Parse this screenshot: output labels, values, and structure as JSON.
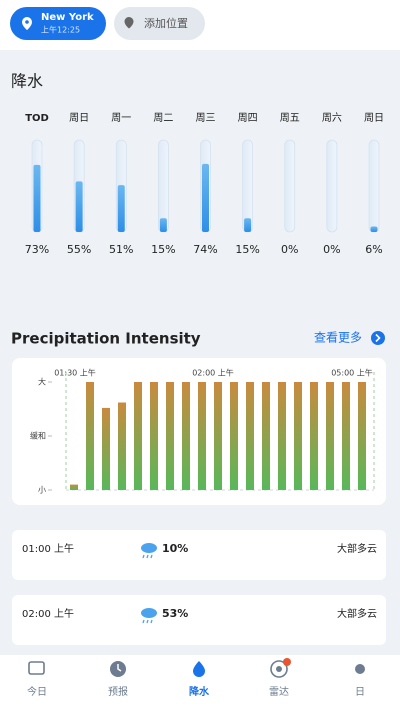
{
  "header": {
    "location": "New York",
    "time": "上午12:25",
    "add_location": "添加位置"
  },
  "precipitation": {
    "title": "降水",
    "categories": [
      "TOD",
      "周日",
      "周一",
      "周二",
      "周三",
      "周四",
      "周五",
      "周六",
      "周日"
    ],
    "values": [
      73,
      55,
      51,
      15,
      74,
      15,
      0,
      0,
      6
    ],
    "value_labels": [
      "73%",
      "55%",
      "51%",
      "15%",
      "74%",
      "15%",
      "0%",
      "0%",
      "6%"
    ]
  },
  "intensity": {
    "title": "Precipitation Intensity",
    "more": "查看更多",
    "time_labels": [
      "01:30 上午",
      "02:00 上午",
      "05:00 上午"
    ],
    "ylim": [
      0,
      1
    ],
    "yticks": [
      {
        "value": 0,
        "label": "小"
      },
      {
        "value": 0.5,
        "label": "缓和"
      },
      {
        "value": 1,
        "label": "大"
      }
    ],
    "values": [
      0.05,
      1,
      0.76,
      0.81,
      1,
      1,
      1,
      1,
      1,
      1,
      1,
      1,
      1,
      1,
      1,
      1,
      1,
      1,
      1
    ]
  },
  "hourly": [
    {
      "time": "01:00 上午",
      "percent": "10%",
      "description": "大部多云"
    },
    {
      "time": "02:00 上午",
      "percent": "53%",
      "description": "大部多云"
    }
  ],
  "nav": [
    "今日",
    "预报",
    "降水",
    "雷达",
    "日"
  ]
}
